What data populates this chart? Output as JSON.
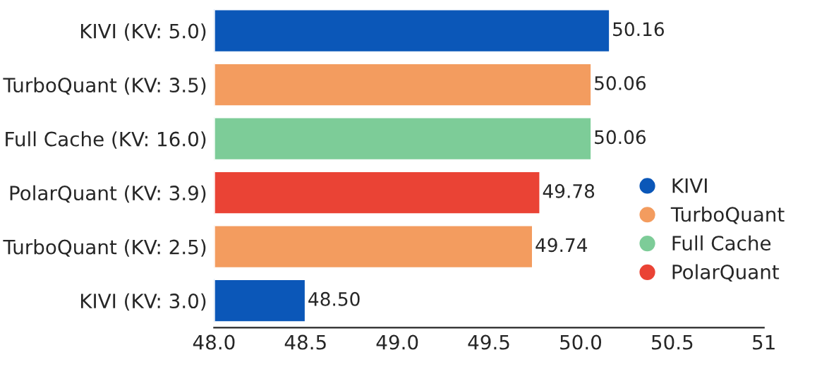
{
  "chart_data": {
    "type": "bar",
    "orientation": "horizontal",
    "categories": [
      "KIVI (KV: 5.0)",
      "TurboQuant (KV: 3.5)",
      "Full Cache (KV: 16.0)",
      "PolarQuant (KV: 3.9)",
      "TurboQuant (KV: 2.5)",
      "KIVI (KV: 3.0)"
    ],
    "series": [
      {
        "name": "KIVI",
        "color": "#0b57b8",
        "values": [
          50.16,
          null,
          null,
          null,
          null,
          48.5
        ],
        "value_labels": [
          "50.16",
          null,
          null,
          null,
          null,
          "48.50"
        ]
      },
      {
        "name": "TurboQuant",
        "color": "#f39c5f",
        "values": [
          null,
          50.06,
          null,
          null,
          49.74,
          null
        ],
        "value_labels": [
          null,
          "50.06",
          null,
          null,
          "49.74",
          null
        ]
      },
      {
        "name": "Full Cache",
        "color": "#7dcc98",
        "values": [
          null,
          null,
          50.06,
          null,
          null,
          null
        ],
        "value_labels": [
          null,
          null,
          "50.06",
          null,
          null,
          null
        ]
      },
      {
        "name": "PolarQuant",
        "color": "#ea4335",
        "values": [
          null,
          null,
          null,
          49.78,
          null,
          null
        ],
        "value_labels": [
          null,
          null,
          null,
          "49.78",
          null,
          null
        ]
      }
    ],
    "xlim": [
      48,
      51
    ],
    "xticks": [
      {
        "value": 48,
        "label": "48.0"
      },
      {
        "value": 48.5,
        "label": "48.5"
      },
      {
        "value": 49,
        "label": "49.0"
      },
      {
        "value": 49.5,
        "label": "49.5"
      },
      {
        "value": 50,
        "label": "50.0"
      },
      {
        "value": 50.5,
        "label": "50.5"
      },
      51
    ],
    "legend": "right",
    "grid": false
  }
}
